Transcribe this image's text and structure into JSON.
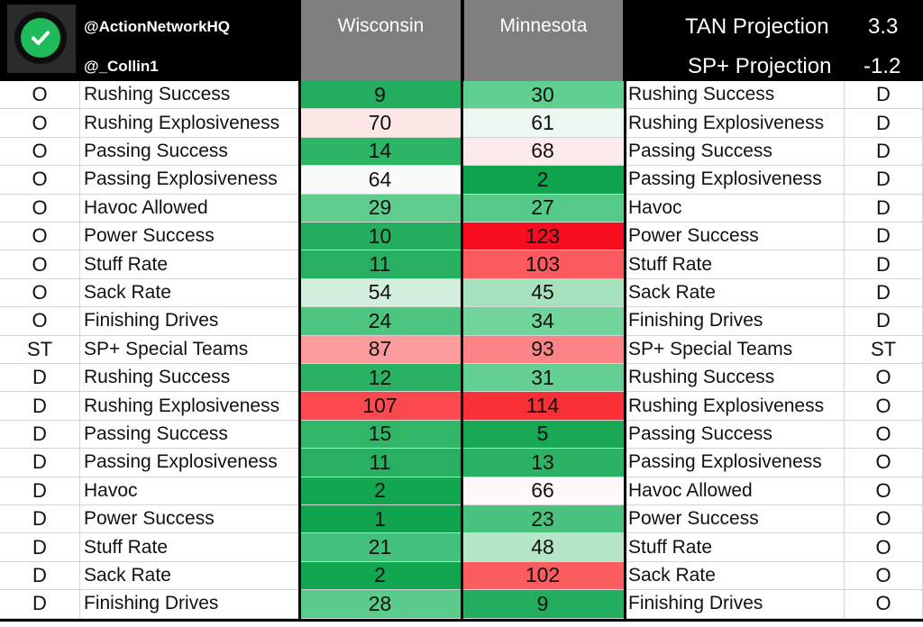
{
  "header": {
    "handle1": "@ActionNetworkHQ",
    "handle2": "@_Collin1",
    "team1": "Wisconsin",
    "team2": "Minnesota",
    "tan_label": "TAN Projection",
    "tan_value": "3.3",
    "sp_label": "SP+ Projection",
    "sp_value": "-1.2"
  },
  "colors": {
    "header_bg": "#000000",
    "team_header_bg": "#7f7f7f",
    "logo_green": "#1fba5a"
  },
  "rows": [
    {
      "side": "O",
      "label": "Rushing Success",
      "wi": "9",
      "mn": "30",
      "label2": "Rushing Success",
      "side2": "D",
      "wi_color": "#22ae5e",
      "mn_color": "#5fcf8f"
    },
    {
      "side": "O",
      "label": "Rushing Explosiveness",
      "wi": "70",
      "mn": "61",
      "label2": "Rushing Explosiveness",
      "side2": "D",
      "wi_color": "#fde6e6",
      "mn_color": "#ebf7ef"
    },
    {
      "side": "O",
      "label": "Passing Success",
      "wi": "14",
      "mn": "68",
      "label2": "Passing Success",
      "side2": "D",
      "wi_color": "#2db465",
      "mn_color": "#fdeaea"
    },
    {
      "side": "O",
      "label": "Passing Explosiveness",
      "wi": "64",
      "mn": "2",
      "label2": "Passing Explosiveness",
      "side2": "D",
      "wi_color": "#f8fbf9",
      "mn_color": "#0ea34d"
    },
    {
      "side": "O",
      "label": "Havoc Allowed",
      "wi": "29",
      "mn": "27",
      "label2": "Havoc",
      "side2": "D",
      "wi_color": "#5ecd8e",
      "mn_color": "#55c987"
    },
    {
      "side": "O",
      "label": "Power Success",
      "wi": "10",
      "mn": "123",
      "label2": "Power Success",
      "side2": "D",
      "wi_color": "#24af5f",
      "mn_color": "#f80d1f"
    },
    {
      "side": "O",
      "label": "Stuff Rate",
      "wi": "11",
      "mn": "103",
      "label2": "Stuff Rate",
      "side2": "D",
      "wi_color": "#27b061",
      "mn_color": "#fb5b5e"
    },
    {
      "side": "O",
      "label": "Sack Rate",
      "wi": "54",
      "mn": "45",
      "label2": "Sack Rate",
      "side2": "D",
      "wi_color": "#d3efdd",
      "mn_color": "#a6e2bd"
    },
    {
      "side": "O",
      "label": "Finishing Drives",
      "wi": "24",
      "mn": "34",
      "label2": "Finishing Drives",
      "side2": "D",
      "wi_color": "#4dc581",
      "mn_color": "#70d49b"
    },
    {
      "side": "ST",
      "label": "SP+ Special Teams",
      "wi": "87",
      "mn": "93",
      "label2": "SP+ Special Teams",
      "side2": "ST",
      "wi_color": "#fc9c9e",
      "mn_color": "#fc8487"
    },
    {
      "side": "D",
      "label": "Rushing Success",
      "wi": "12",
      "mn": "31",
      "label2": "Rushing Success",
      "side2": "O",
      "wi_color": "#2ab263",
      "mn_color": "#63cf92"
    },
    {
      "side": "D",
      "label": "Rushing Explosiveness",
      "wi": "107",
      "mn": "114",
      "label2": "Rushing Explosiveness",
      "side2": "O",
      "wi_color": "#fb4a4f",
      "mn_color": "#f93137"
    },
    {
      "side": "D",
      "label": "Passing Success",
      "wi": "15",
      "mn": "5",
      "label2": "Passing Success",
      "side2": "O",
      "wi_color": "#31b668",
      "mn_color": "#18a854"
    },
    {
      "side": "D",
      "label": "Passing Explosiveness",
      "wi": "11",
      "mn": "13",
      "label2": "Passing Explosiveness",
      "side2": "O",
      "wi_color": "#27b061",
      "mn_color": "#2bb264"
    },
    {
      "side": "D",
      "label": "Havoc",
      "wi": "2",
      "mn": "66",
      "label2": "Havoc Allowed",
      "side2": "O",
      "wi_color": "#12a650",
      "mn_color": "#fff8fa"
    },
    {
      "side": "D",
      "label": "Power Success",
      "wi": "1",
      "mn": "23",
      "label2": "Power Success",
      "side2": "O",
      "wi_color": "#0fa44e",
      "mn_color": "#48c27d"
    },
    {
      "side": "D",
      "label": "Stuff Rate",
      "wi": "21",
      "mn": "48",
      "label2": "Stuff Rate",
      "side2": "O",
      "wi_color": "#43c079",
      "mn_color": "#b5e6c7"
    },
    {
      "side": "D",
      "label": "Sack Rate",
      "wi": "2",
      "mn": "102",
      "label2": "Sack Rate",
      "side2": "O",
      "wi_color": "#12a650",
      "mn_color": "#fb5d60"
    },
    {
      "side": "D",
      "label": "Finishing Drives",
      "wi": "28",
      "mn": "9",
      "label2": "Finishing Drives",
      "side2": "O",
      "wi_color": "#5acb8b",
      "mn_color": "#22ae5e"
    }
  ]
}
